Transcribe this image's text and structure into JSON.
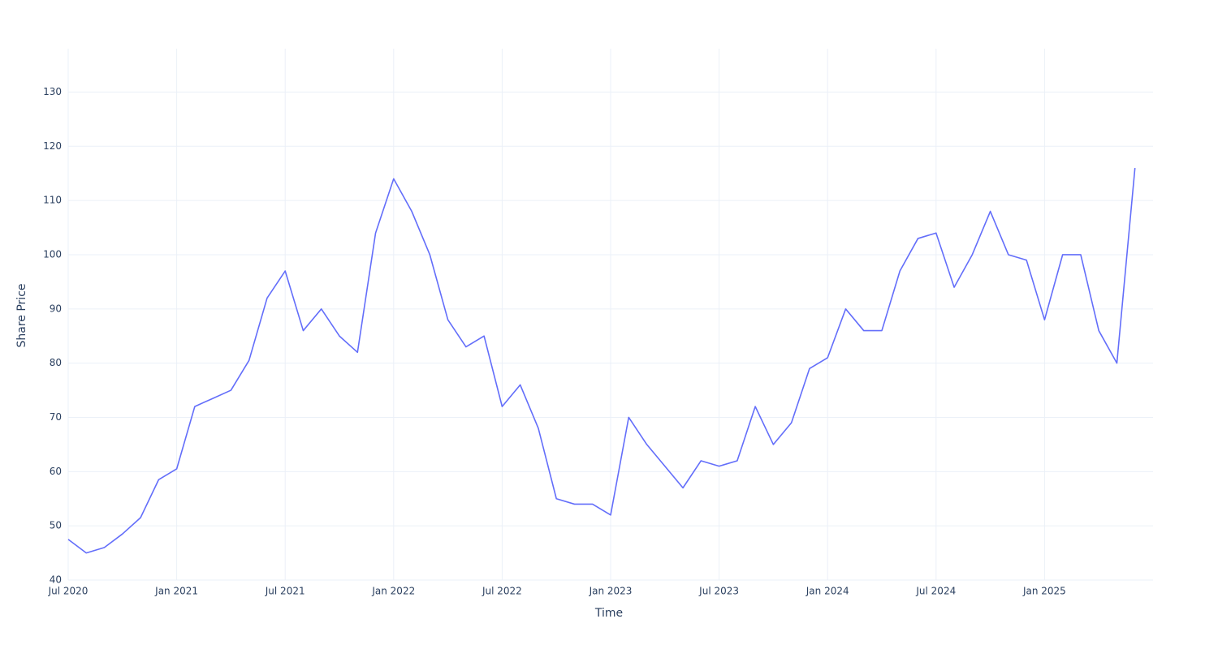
{
  "chart_data": {
    "type": "line",
    "xlabel": "Time",
    "ylabel": "Share Price",
    "x": [
      "2020-07",
      "2020-08",
      "2020-09",
      "2020-10",
      "2020-11",
      "2020-12",
      "2021-01",
      "2021-02",
      "2021-03",
      "2021-04",
      "2021-05",
      "2021-06",
      "2021-07",
      "2021-08",
      "2021-09",
      "2021-10",
      "2021-11",
      "2021-12",
      "2022-01",
      "2022-02",
      "2022-03",
      "2022-04",
      "2022-05",
      "2022-06",
      "2022-07",
      "2022-08",
      "2022-09",
      "2022-10",
      "2022-11",
      "2022-12",
      "2023-01",
      "2023-02",
      "2023-03",
      "2023-04",
      "2023-05",
      "2023-06",
      "2023-07",
      "2023-08",
      "2023-09",
      "2023-10",
      "2023-11",
      "2023-12",
      "2024-01",
      "2024-02",
      "2024-03",
      "2024-04",
      "2024-05",
      "2024-06",
      "2024-07",
      "2024-08",
      "2024-09",
      "2024-10",
      "2024-11",
      "2024-12",
      "2025-01",
      "2025-02",
      "2025-03",
      "2025-04",
      "2025-05",
      "2025-06"
    ],
    "series": [
      {
        "name": "Share Price",
        "color": "#636efa",
        "values": [
          47.5,
          45,
          46,
          48.5,
          51.5,
          58.5,
          60.5,
          72,
          73.5,
          75,
          80.5,
          92,
          97,
          86,
          90,
          85,
          82,
          104,
          114,
          108,
          100,
          88,
          83,
          85,
          72,
          76,
          68,
          55,
          54,
          54,
          52,
          70,
          65,
          61,
          57,
          62,
          61,
          62,
          72,
          65,
          69,
          79,
          81,
          90,
          86,
          86,
          97,
          103,
          104,
          94,
          100,
          108,
          100,
          99,
          88,
          100,
          100,
          86,
          80,
          116
        ]
      }
    ],
    "xlim": [
      "2020-07",
      "2025-07"
    ],
    "xticks": [
      {
        "value": "2020-07",
        "label": "Jul 2020"
      },
      {
        "value": "2021-01",
        "label": "Jan 2021"
      },
      {
        "value": "2021-07",
        "label": "Jul 2021"
      },
      {
        "value": "2022-01",
        "label": "Jan 2022"
      },
      {
        "value": "2022-07",
        "label": "Jul 2022"
      },
      {
        "value": "2023-01",
        "label": "Jan 2023"
      },
      {
        "value": "2023-07",
        "label": "Jul 2023"
      },
      {
        "value": "2024-01",
        "label": "Jan 2024"
      },
      {
        "value": "2024-07",
        "label": "Jul 2024"
      },
      {
        "value": "2025-01",
        "label": "Jan 2025"
      }
    ],
    "ylim": [
      40,
      138
    ],
    "yticks": [
      40,
      50,
      60,
      70,
      80,
      90,
      100,
      110,
      120,
      130
    ],
    "grid": true
  }
}
